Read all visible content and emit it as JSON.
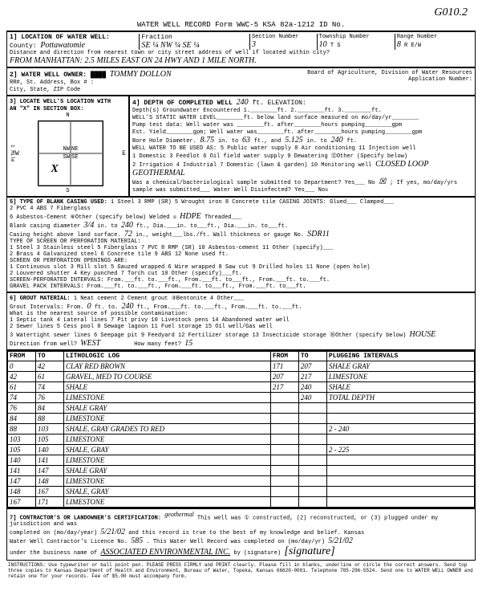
{
  "top_id": "G010.2",
  "form_header": "WATER WELL RECORD   Form WWC-5    KSA 82a-1212   ID No.",
  "s1": {
    "title": "1] LOCATION OF WATER WELL:",
    "county_label": "County:",
    "county": "Pottawatomie",
    "fraction_label": "Fraction",
    "fraction": "SE ¼  NW ¼  SE ¼",
    "section_label": "Section Number",
    "section": "3",
    "township_label": "Township Number",
    "township": "10",
    "ts": "T  S",
    "range_label": "Range Number",
    "range": "8",
    "r_ew": "R   E/W",
    "distance_label": "Distance and direction from nearest town or city street address of well if located within city?",
    "from": "FROM MANHATTAN: 2.5 MILES EAST ON 24 HWY AND 1 MILE NORTH."
  },
  "s2": {
    "title": "2] WATER WELL OWNER:",
    "owner": "TOMMY DOLLON",
    "addr_label": "RR#, St. Address, Box # :\nCity, State, ZIP Code",
    "board": "Board of Agriculture, Division of Water Resources\nApplication Number:"
  },
  "s3": {
    "title": "3] LOCATE WELL'S LOCATION WITH\nAN \"X\" IN SECTION BOX:",
    "n": "N",
    "s": "S",
    "e": "E",
    "w": "W",
    "mile": "1 Mile"
  },
  "s4": {
    "title": "4] DEPTH OF COMPLETED WELL",
    "depth": "240",
    "elev_label": "ft. ELEVATION:",
    "gw_label": "Depth(s) Groundwater Encountered  1.________ft. 2.________ft. 3.________ft.",
    "static_label": "WELL'S STATIC WATER LEVEL________ft. below land surface measured on mo/day/yr________",
    "pump_label": "Pump test data: Well water was ________ft. after________hours pumping________gpm",
    "est_label": "Est. Yield________gpm; Well water was________ft. after________hours pumping________gpm",
    "bore_label": "Bore Hole Diameter.",
    "bore1": "8.75",
    "bore_to": "in. to",
    "bore2": "63",
    "bore_and": "ft., and",
    "bore3": "5.125",
    "bore_to2": "in. to",
    "bore4": "240",
    "bore_ft": "ft.",
    "use_label": "WELL WATER TO BE USED AS:",
    "uses": "5 Public water supply   8 Air conditioning   11 Injection well\n1 Domestic   3 Feedlot   6 Oil field water supply   9 Dewatering   ⑫Other (Specify below)\n2 Irrigation   4 Industrial   7 Domestic (lawn & garden)  10 Monitoring well",
    "other_use": "CLOSED LOOP GEOTHERMAL",
    "chem_label": "Was a chemical/bacteriological sample submitted to Department? Yes___ No",
    "chem_x": "☒",
    "disinf": "Water Well Disinfected? Yes___ No☒"
  },
  "s5": {
    "title": "5] TYPE OF BLANK CASING USED:",
    "types": "1 Steel   3 RMP (SR)   5 Wrought iron   8 Concrete tile   CASING JOINTS: Glued___ Clamped___\n2 PVC   4 ABS   7 Fiberglass",
    "asb": "6 Asbestos-Cement  ⑥Other (specify below)   Welded ☒",
    "other_casing": "HDPE",
    "threaded": "Threaded___",
    "diam_label": "Blank casing diameter",
    "diam": "3/4",
    "diam_to": "in. to",
    "diam_ft": "240",
    "diam_rest": "ft., Dia.___in. to___ft., Dia.___in. to___ft.",
    "height_label": "Casing height above land surface.",
    "height": "72",
    "height_unit": "in., weight___lbs./ft. Wall thickness or gauge No.",
    "gauge": "SDR11",
    "screen_label": "TYPE OF SCREEN OR PERFORATION MATERIAL:",
    "screens": "1 Steel   3 Stainless steel   5 Fiberglass   7 PVC   8 RMP (SR)   10 Asbestos-cement   11 Other (specify)___\n2 Brass   4 Galvanized steel   6 Concrete tile   9 ABS   12 None used ft.",
    "open_label": "SCREEN OR PERFORATION OPENINGS ARE:",
    "opens": "1 Continuous slot   3 Mill slot   5 Gauzed wrapped   6 Wire wrapped   8 Saw cut   9 Drilled holes   11 None (open hole)\n2 Louvered shutter   4 Key punched   7 Torch cut   10 Other (specify)___ft.",
    "perf_label": "SCREEN-PERFORATED INTERVALS: From.___ft. to.___ft., From.___ft. to___ft., From.___ft. to.___ft.",
    "gravel_label": "GRAVEL PACK INTERVALS: From.___ft. to.___ft., From.___ft. to___ft., From.___ft. to___ft."
  },
  "s6": {
    "title": "6] GROUT MATERIAL:",
    "mats": "1 Neat cement   2 Cement grout   ③Bentonite   4 Other___",
    "grout_label": "Grout Intervals: From.",
    "grout_from": "0",
    "grout_to_label": "ft. to.",
    "grout_to": "240",
    "grout_rest": "ft., From.___ft. to.___ft., From.___ft. to.___ft.",
    "contam_label": "What is the nearest source of possible contamination:",
    "contams": "1 Septic tank   4 Lateral lines   7 Pit privy   10 Livestock pens   14 Abandoned water well\n2 Sewer lines   5 Cess pool   8 Sewage lagoon   11 Fuel storage   15 Oil well/Gas well\n3 Watertight sewer lines  6 Seepage pit   9 Feedyard   12 Fertilizer storage   13 Insecticide storage   ⑯Other (specify below)",
    "other_contam": "HOUSE",
    "dir_label": "Direction from well?",
    "dir": "WEST",
    "feet_label": "How many feet?",
    "feet": "15"
  },
  "log": {
    "h_from": "FROM",
    "h_to": "TO",
    "h_lith": "LITHOLOGIC LOG",
    "h_plug": "PLUGGING INTERVALS",
    "rows": [
      {
        "f": "0",
        "t": "42",
        "l": "CLAY RED BROWN",
        "f2": "171",
        "t2": "207",
        "p": "SHALE GRAY"
      },
      {
        "f": "42",
        "t": "61",
        "l": "GRAVEL, MED TO COURSE",
        "f2": "207",
        "t2": "217",
        "p": "LIMESTONE"
      },
      {
        "f": "61",
        "t": "74",
        "l": "SHALE",
        "f2": "217",
        "t2": "240",
        "p": "SHALE"
      },
      {
        "f": "74",
        "t": "76",
        "l": "LIMESTONE",
        "f2": "",
        "t2": "240",
        "p": "TOTAL DEPTH"
      },
      {
        "f": "76",
        "t": "84",
        "l": "SHALE GRAY",
        "f2": "",
        "t2": "",
        "p": ""
      },
      {
        "f": "84",
        "t": "88",
        "l": "LIMESTONE",
        "f2": "",
        "t2": "",
        "p": ""
      },
      {
        "f": "88",
        "t": "103",
        "l": "SHALE, GRAY GRADES TO RED",
        "f2": "",
        "t2": "",
        "p": "2 - 240"
      },
      {
        "f": "103",
        "t": "105",
        "l": "LIMESTONE",
        "f2": "",
        "t2": "",
        "p": ""
      },
      {
        "f": "105",
        "t": "140",
        "l": "SHALE, GRAY",
        "f2": "",
        "t2": "",
        "p": "2 - 225"
      },
      {
        "f": "140",
        "t": "141",
        "l": "LIMESTONE",
        "f2": "",
        "t2": "",
        "p": ""
      },
      {
        "f": "141",
        "t": "147",
        "l": "SHALE GRAY",
        "f2": "",
        "t2": "",
        "p": ""
      },
      {
        "f": "147",
        "t": "148",
        "l": "LIMESTONE",
        "f2": "",
        "t2": "",
        "p": ""
      },
      {
        "f": "148",
        "t": "167",
        "l": "SHALE, GRAY",
        "f2": "",
        "t2": "",
        "p": ""
      },
      {
        "f": "167",
        "t": "171",
        "l": "LIMESTONE",
        "f2": "",
        "t2": "",
        "p": ""
      }
    ]
  },
  "s7": {
    "title": "7] CONTRACTOR'S OR LANDOWNER'S CERTIFICATION:",
    "geothermal": "geothermal",
    "text1": "This well was ① constructed, (2) reconstructed, or (3) plugged under my jurisdiction and was",
    "text2": "completed on (mo/day/year)",
    "date1": "5/21/02",
    "text3": "and this record is true to the best of my knowledge and belief. Kansas",
    "text4": "Water Well Contractor's Licence No.",
    "lic": "585",
    "text5": ". This Water Well Record was completed on (mo/day/yr)",
    "date2": "5/21/02",
    "text6": "under the business name of",
    "biz": "ASSOCIATED ENVIRONMENTAL INC.",
    "text7": "by (signature)",
    "sig": "[signature]"
  },
  "instructions": "INSTRUCTIONS: Use typewriter or ball point pen. PLEASE PRESS FIRMLY and PRINT clearly. Please fill in blanks, underline or circle the correct answers. Send top three copies to Kansas Department of Health and Environment, Bureau of Water, Topeka, Kansas 66620-0001. Telephone 785-296-5524. Send one to WATER WELL OWNER and retain one for your records. Fee of $5.00 must accompany form."
}
